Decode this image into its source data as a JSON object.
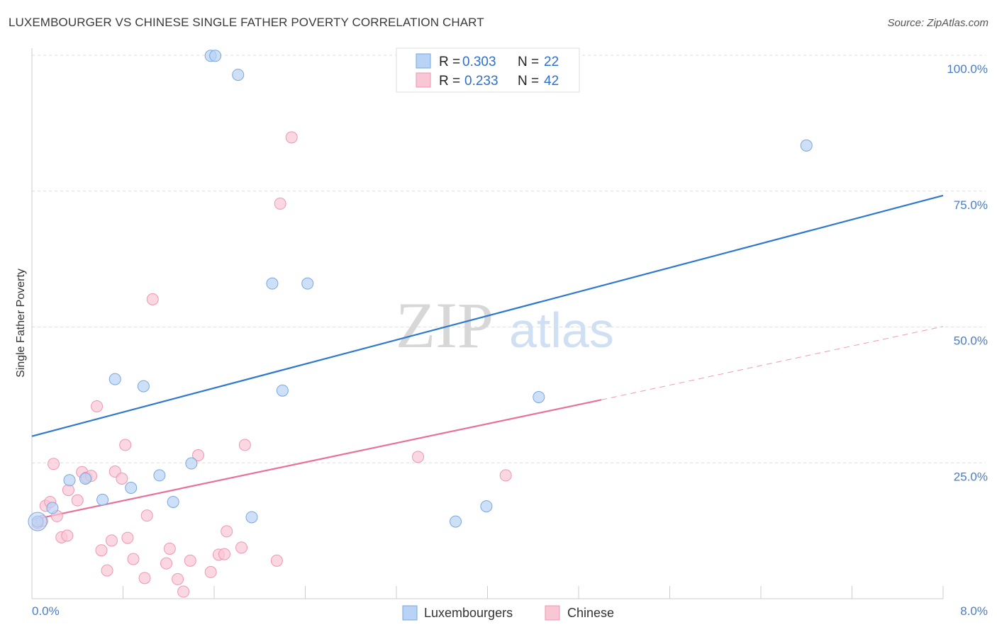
{
  "header": {
    "title": "LUXEMBOURGER VS CHINESE SINGLE FATHER POVERTY CORRELATION CHART",
    "source": "Source: ZipAtlas.com"
  },
  "watermark": {
    "zip": "ZIP",
    "atlas": "atlas"
  },
  "colors": {
    "blue_fill": "#b8d3f5",
    "blue_stroke": "#7aa7de",
    "blue_line": "#2f78d0",
    "pink_fill": "#f9c6d6",
    "pink_stroke": "#ee97b3",
    "pink_line": "#e8709a",
    "grid": "#dddddd",
    "tick_text": "#4a7cc9"
  },
  "legend": {
    "rows": [
      {
        "r_label": "R =",
        "r_value": "0.303",
        "n_label": "N =",
        "n_value": "22"
      },
      {
        "r_label": "R =",
        "r_value": "0.233",
        "n_label": "N =",
        "n_value": "42"
      }
    ]
  },
  "bottom_legend": {
    "items": [
      "Luxembourgers",
      "Chinese"
    ]
  },
  "chart_data": {
    "type": "scatter",
    "ylabel": "Single Father Poverty",
    "xlabel": "",
    "xlim": [
      0,
      8
    ],
    "ylim": [
      0,
      100
    ],
    "x_tick_labels": [
      "0.0%",
      "8.0%"
    ],
    "y_tick_labels": [
      "100.0%",
      "75.0%",
      "50.0%",
      "25.0%"
    ],
    "y_tick_values": [
      100,
      75,
      50,
      25
    ],
    "grid": true,
    "legend_placement": "top-center",
    "series": [
      {
        "name": "Luxembourgers",
        "points": [
          [
            0.05,
            14.2
          ],
          [
            0.18,
            16.7
          ],
          [
            0.33,
            21.8
          ],
          [
            0.47,
            22.1
          ],
          [
            0.62,
            18.2
          ],
          [
            0.73,
            40.4
          ],
          [
            0.87,
            20.4
          ],
          [
            0.98,
            39.1
          ],
          [
            1.12,
            22.7
          ],
          [
            1.24,
            17.8
          ],
          [
            1.4,
            24.9
          ],
          [
            1.57,
            99.9
          ],
          [
            1.61,
            99.9
          ],
          [
            1.81,
            96.4
          ],
          [
            1.93,
            15.0
          ],
          [
            2.11,
            58.0
          ],
          [
            2.2,
            38.3
          ],
          [
            2.42,
            58.0
          ],
          [
            3.72,
            14.2
          ],
          [
            3.99,
            17.0
          ],
          [
            4.45,
            37.1
          ],
          [
            6.8,
            83.4
          ]
        ],
        "trend": {
          "x": [
            0,
            8
          ],
          "y": [
            29.9,
            74.2
          ]
        }
      },
      {
        "name": "Chinese",
        "points": [
          [
            0.05,
            13.9
          ],
          [
            0.12,
            17.1
          ],
          [
            0.16,
            17.8
          ],
          [
            0.19,
            24.8
          ],
          [
            0.22,
            15.2
          ],
          [
            0.26,
            11.3
          ],
          [
            0.31,
            11.6
          ],
          [
            0.32,
            20.0
          ],
          [
            0.4,
            18.1
          ],
          [
            0.44,
            23.3
          ],
          [
            0.48,
            22.3
          ],
          [
            0.52,
            22.6
          ],
          [
            0.57,
            35.4
          ],
          [
            0.61,
            8.9
          ],
          [
            0.66,
            5.2
          ],
          [
            0.7,
            10.7
          ],
          [
            0.73,
            23.4
          ],
          [
            0.79,
            22.1
          ],
          [
            0.82,
            28.3
          ],
          [
            0.84,
            11.2
          ],
          [
            0.89,
            7.3
          ],
          [
            0.99,
            3.8
          ],
          [
            1.01,
            15.3
          ],
          [
            1.06,
            55.1
          ],
          [
            1.18,
            6.5
          ],
          [
            1.21,
            9.2
          ],
          [
            1.28,
            3.6
          ],
          [
            1.33,
            1.3
          ],
          [
            1.39,
            7.0
          ],
          [
            1.46,
            26.4
          ],
          [
            1.57,
            4.9
          ],
          [
            1.64,
            8.1
          ],
          [
            1.69,
            8.2
          ],
          [
            1.71,
            12.4
          ],
          [
            1.84,
            9.4
          ],
          [
            1.87,
            28.3
          ],
          [
            2.15,
            7.0
          ],
          [
            2.18,
            72.7
          ],
          [
            2.28,
            84.9
          ],
          [
            3.39,
            26.1
          ],
          [
            4.16,
            22.7
          ],
          [
            0.09,
            14.3
          ]
        ],
        "trend": {
          "x": [
            0,
            5.0
          ],
          "y": [
            14.5,
            36.6
          ]
        },
        "trend_extension": {
          "x": [
            5.0,
            8
          ],
          "y": [
            36.6,
            50.1
          ]
        }
      }
    ]
  }
}
